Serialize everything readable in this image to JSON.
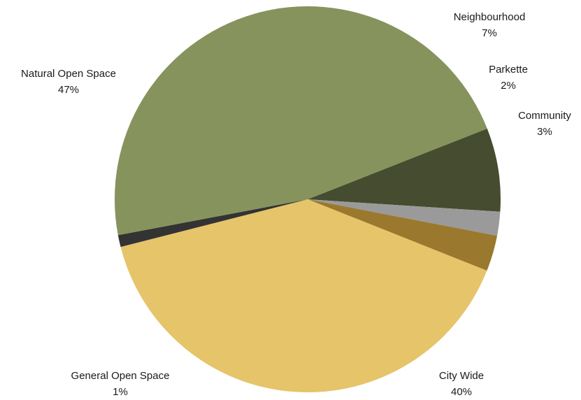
{
  "chart_data": {
    "type": "pie",
    "slices": [
      {
        "name": "Neighbourhood",
        "value": 7,
        "label": "7%",
        "color": "#454c2f"
      },
      {
        "name": "Parkette",
        "value": 2,
        "label": "2%",
        "color": "#9a9a9a"
      },
      {
        "name": "Community",
        "value": 3,
        "label": "3%",
        "color": "#9a782d"
      },
      {
        "name": "City Wide",
        "value": 40,
        "label": "40%",
        "color": "#e5c46a"
      },
      {
        "name": "General Open Space",
        "value": 1,
        "label": "1%",
        "color": "#333333"
      },
      {
        "name": "Natural Open Space",
        "value": 47,
        "label": "47%",
        "color": "#86935c"
      }
    ]
  }
}
